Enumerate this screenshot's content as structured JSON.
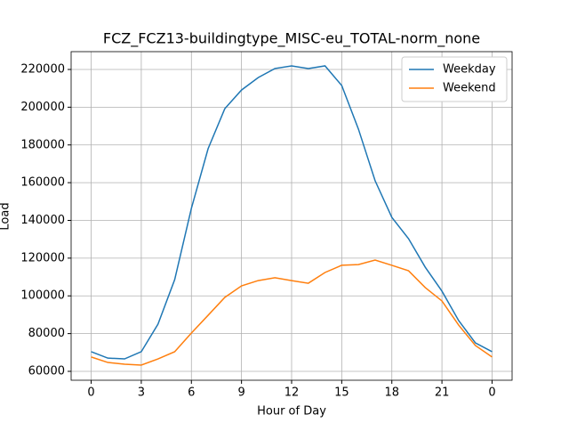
{
  "chart_data": {
    "type": "line",
    "title": "FCZ_FCZ13-buildingtype_MISC-eu_TOTAL-norm_none",
    "x_label": "Hour of Day",
    "y_label": "Load",
    "x": [
      0,
      1,
      2,
      3,
      4,
      5,
      6,
      7,
      8,
      9,
      10,
      11,
      12,
      13,
      14,
      15,
      16,
      17,
      18,
      19,
      20,
      21,
      22,
      23,
      24
    ],
    "series": [
      {
        "name": "Weekday",
        "color": "#1f77b4",
        "values": [
          70400,
          67000,
          66600,
          70400,
          85000,
          108600,
          146400,
          178000,
          199200,
          209100,
          215700,
          220500,
          221900,
          220500,
          221900,
          211500,
          188400,
          161000,
          141600,
          130300,
          115200,
          102500,
          86900,
          75100,
          70400
        ]
      },
      {
        "name": "Weekend",
        "color": "#ff7f0e",
        "values": [
          67600,
          64700,
          63800,
          63300,
          66600,
          70400,
          80300,
          89700,
          99200,
          105300,
          108100,
          109600,
          108100,
          106700,
          112400,
          116200,
          116600,
          119000,
          116200,
          113300,
          104400,
          97300,
          84500,
          73700,
          67600
        ]
      }
    ],
    "xlim": [
      -1.2,
      25.2
    ],
    "xticks": [
      0,
      3,
      6,
      9,
      12,
      15,
      18,
      21,
      {
        "value": 24,
        "label": "0"
      }
    ],
    "ylim": [
      55280,
      229440
    ],
    "yticks": [
      60000,
      80000,
      100000,
      120000,
      140000,
      160000,
      180000,
      200000,
      220000
    ],
    "grid": true,
    "legend": "upper right"
  }
}
